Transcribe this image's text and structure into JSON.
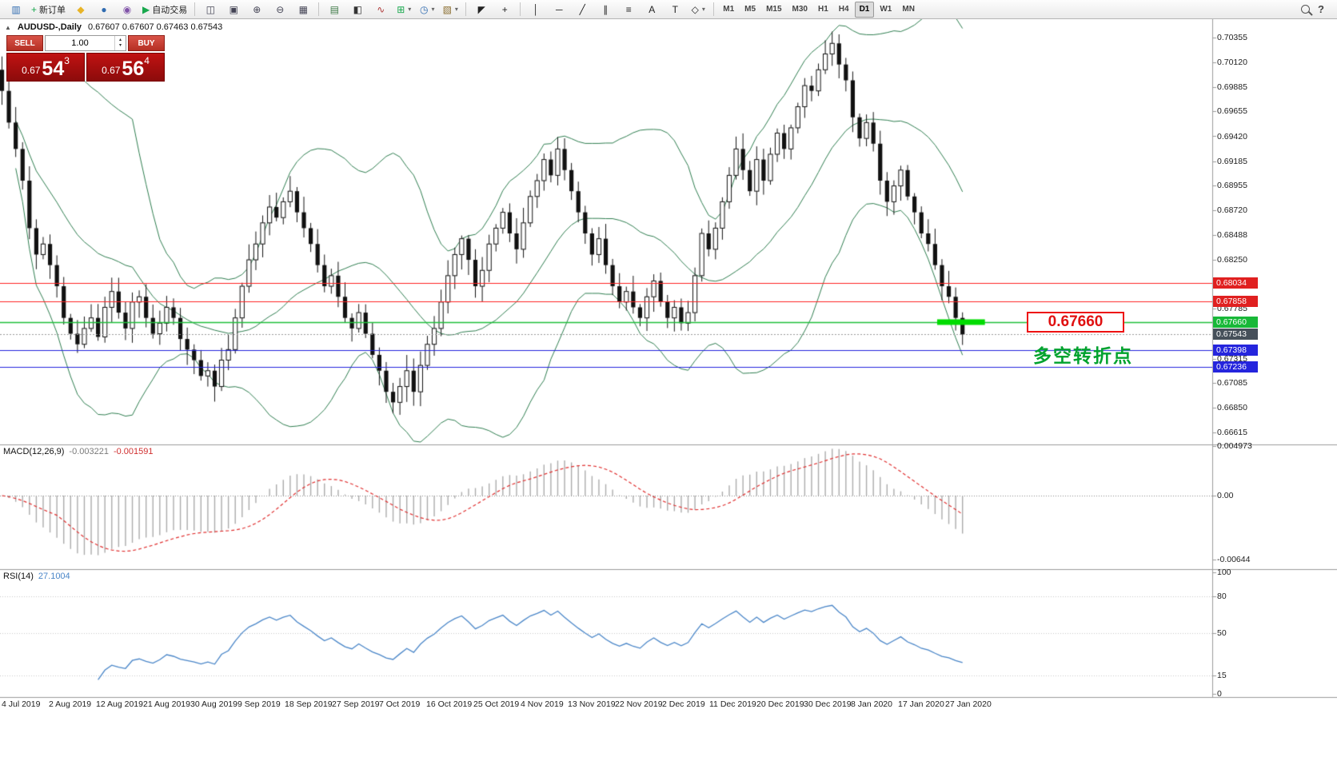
{
  "toolbar": {
    "dropdown_glyph": "▾",
    "help_glyph": "?",
    "groups": [
      [
        {
          "name": "new-chart-button",
          "glyph": "▥",
          "color": "#2f6bb0"
        },
        {
          "name": "new-order-button",
          "glyph": "+",
          "color": "#18a84d",
          "label": "新订单"
        },
        {
          "name": "favorites-button",
          "glyph": "◆",
          "color": "#e8b427"
        },
        {
          "name": "history-center-button",
          "glyph": "●",
          "color": "#2f6bb0"
        },
        {
          "name": "navigator-button",
          "glyph": "◉",
          "color": "#8053a8"
        },
        {
          "name": "autotrading-button",
          "glyph": "▶",
          "color": "#18a84d",
          "label": "自动交易"
        }
      ],
      [
        {
          "name": "tile-windows-button",
          "glyph": "◫",
          "color": "#444455"
        },
        {
          "name": "cascade-windows-button",
          "glyph": "▣",
          "color": "#444455"
        },
        {
          "name": "zoom-in-button",
          "glyph": "⊕",
          "color": "#444455"
        },
        {
          "name": "zoom-out-button",
          "glyph": "⊖",
          "color": "#444455"
        },
        {
          "name": "grid-button",
          "glyph": "▦",
          "color": "#444455"
        }
      ],
      [
        {
          "name": "bars-chart-button",
          "glyph": "▤",
          "color": "#3d7a46"
        },
        {
          "name": "candlestick-chart-button",
          "glyph": "◧",
          "color": "#333333"
        },
        {
          "name": "line-chart-button",
          "glyph": "∿",
          "color": "#b03a3a"
        },
        {
          "name": "indicators-button",
          "glyph": "⊞",
          "color": "#18a84d",
          "dropdown": true
        },
        {
          "name": "periods-button",
          "glyph": "◷",
          "color": "#2f6bb0",
          "dropdown": true
        },
        {
          "name": "templates-button",
          "glyph": "▧",
          "color": "#8a6d2f",
          "dropdown": true
        }
      ],
      [
        {
          "name": "cursor-button",
          "glyph": "◤",
          "color": "#222222"
        },
        {
          "name": "crosshair-button",
          "glyph": "+",
          "color": "#222222"
        }
      ],
      [
        {
          "name": "vertical-line-button",
          "glyph": "│",
          "color": "#222222"
        },
        {
          "name": "horizontal-line-button",
          "glyph": "─",
          "color": "#222222"
        },
        {
          "name": "trendline-button",
          "glyph": "╱",
          "color": "#222222"
        },
        {
          "name": "channel-button",
          "glyph": "∥",
          "color": "#222222"
        },
        {
          "name": "fibonacci-button",
          "glyph": "≡",
          "color": "#222222"
        },
        {
          "name": "text-button",
          "glyph": "A",
          "color": "#222222"
        },
        {
          "name": "label-button",
          "glyph": "T",
          "color": "#222222"
        },
        {
          "name": "shapes-button",
          "glyph": "◇",
          "color": "#222222",
          "dropdown": true
        }
      ]
    ],
    "timeframes": [
      {
        "label": "M1"
      },
      {
        "label": "M5"
      },
      {
        "label": "M15"
      },
      {
        "label": "M30"
      },
      {
        "label": "H1"
      },
      {
        "label": "H4"
      },
      {
        "label": "D1",
        "active": true
      },
      {
        "label": "W1"
      },
      {
        "label": "MN"
      }
    ]
  },
  "chart": {
    "collapse_glyph": "▲",
    "symbol_period": "AUDUSD-,Daily",
    "ohlc": "0.67607 0.67607 0.67463 0.67543"
  },
  "one_click": {
    "sell_label": "SELL",
    "buy_label": "BUY",
    "volume": "1.00",
    "spin_up": "▴",
    "spin_down": "▾",
    "bid_int": "0.67",
    "bid_big": "54",
    "bid_sup": "3",
    "ask_int": "0.67",
    "ask_big": "56",
    "ask_sup": "4"
  },
  "annotations": {
    "price_label": "0.67660",
    "turning_point": "多空转折点"
  },
  "price_axis": {
    "ticks": [
      {
        "label": "0.70355",
        "price": 0.70355
      },
      {
        "label": "0.70120",
        "price": 0.7012
      },
      {
        "label": "0.69885",
        "price": 0.69885
      },
      {
        "label": "0.69655",
        "price": 0.69655
      },
      {
        "label": "0.69420",
        "price": 0.6942
      },
      {
        "label": "0.69185",
        "price": 0.69185
      },
      {
        "label": "0.68955",
        "price": 0.68955
      },
      {
        "label": "0.68720",
        "price": 0.6872
      },
      {
        "label": "0.68488",
        "price": 0.68488
      },
      {
        "label": "0.68250",
        "price": 0.6825
      },
      {
        "label": "0.67785",
        "price": 0.67785
      },
      {
        "label": "0.67315",
        "price": 0.67315
      },
      {
        "label": "0.67085",
        "price": 0.67085
      },
      {
        "label": "0.66850",
        "price": 0.6685
      },
      {
        "label": "0.66615",
        "price": 0.66615
      }
    ],
    "badges": [
      {
        "label": "0.68034",
        "price": 0.68034,
        "bg": "#e02020"
      },
      {
        "label": "0.67858",
        "price": 0.67858,
        "bg": "#e02020"
      },
      {
        "label": "0.67660",
        "price": 0.6766,
        "bg": "#18b838"
      },
      {
        "label": "0.67543",
        "price": 0.67543,
        "bg": "#46505a"
      },
      {
        "label": "0.67398",
        "price": 0.67398,
        "bg": "#2525dd"
      },
      {
        "label": "0.67236",
        "price": 0.67236,
        "bg": "#2525dd"
      }
    ]
  },
  "macd": {
    "name": "MACD(12,26,9)",
    "value_main": "-0.003221",
    "value_signal": "-0.001591",
    "scale": [
      {
        "label": "0.004973",
        "value": 0.004973
      },
      {
        "label": "0.00",
        "value": 0
      },
      {
        "label": "-0.00644",
        "value": -0.00644
      }
    ]
  },
  "rsi": {
    "name": "RSI(14)",
    "value": "27.1004",
    "scale": [
      {
        "label": "100",
        "value": 100
      },
      {
        "label": "80",
        "value": 80
      },
      {
        "label": "50",
        "value": 50
      },
      {
        "label": "15",
        "value": 15
      },
      {
        "label": "0",
        "value": 0
      }
    ],
    "levels": [
      80,
      50,
      15
    ]
  },
  "chart_data": {
    "type": "candlestick",
    "symbol": "AUDUSD",
    "timeframe": "Daily",
    "first_open": 0.7005,
    "close": [
      0.6985,
      0.6955,
      0.693,
      0.69,
      0.6855,
      0.683,
      0.684,
      0.682,
      0.68,
      0.677,
      0.6755,
      0.6745,
      0.676,
      0.677,
      0.6752,
      0.678,
      0.6795,
      0.6775,
      0.676,
      0.6785,
      0.679,
      0.677,
      0.6755,
      0.6765,
      0.678,
      0.677,
      0.675,
      0.674,
      0.673,
      0.6715,
      0.672,
      0.6705,
      0.673,
      0.674,
      0.677,
      0.68,
      0.6825,
      0.684,
      0.686,
      0.6875,
      0.6865,
      0.688,
      0.689,
      0.687,
      0.6855,
      0.684,
      0.682,
      0.68,
      0.681,
      0.679,
      0.677,
      0.676,
      0.6775,
      0.6755,
      0.6735,
      0.672,
      0.67,
      0.669,
      0.6705,
      0.672,
      0.67,
      0.6725,
      0.6745,
      0.676,
      0.6785,
      0.681,
      0.683,
      0.6845,
      0.6825,
      0.68,
      0.6815,
      0.684,
      0.6855,
      0.687,
      0.685,
      0.6835,
      0.686,
      0.6885,
      0.69,
      0.692,
      0.6905,
      0.693,
      0.691,
      0.689,
      0.687,
      0.685,
      0.683,
      0.6845,
      0.682,
      0.68,
      0.6785,
      0.6795,
      0.678,
      0.677,
      0.679,
      0.6805,
      0.6785,
      0.677,
      0.678,
      0.6765,
      0.6775,
      0.681,
      0.685,
      0.6835,
      0.6855,
      0.688,
      0.6905,
      0.693,
      0.691,
      0.689,
      0.692,
      0.69,
      0.6925,
      0.6945,
      0.693,
      0.695,
      0.697,
      0.699,
      0.6985,
      0.7005,
      0.702,
      0.703,
      0.701,
      0.6995,
      0.696,
      0.694,
      0.6955,
      0.6935,
      0.69,
      0.688,
      0.6895,
      0.691,
      0.6885,
      0.687,
      0.685,
      0.684,
      0.682,
      0.68,
      0.679,
      0.677,
      0.67543
    ],
    "x_labels": [
      "4 Jul 2019",
      "2 Aug 2019",
      "12 Aug 2019",
      "21 Aug 2019",
      "30 Aug 2019",
      "9 Sep 2019",
      "18 Sep 2019",
      "27 Sep 2019",
      "7 Oct 2019",
      "16 Oct 2019",
      "25 Oct 2019",
      "4 Nov 2019",
      "13 Nov 2019",
      "22 Nov 2019",
      "2 Dec 2019",
      "11 Dec 2019",
      "20 Dec 2019",
      "30 Dec 2019",
      "8 Jan 2020",
      "17 Jan 2020",
      "27 Jan 2020"
    ],
    "y_range": {
      "min": 0.66615,
      "max": 0.70355
    },
    "levels": [
      {
        "price": 0.68034,
        "color": "#ff2222",
        "style": "solid",
        "width": 1
      },
      {
        "price": 0.67858,
        "color": "#ff2222",
        "style": "solid",
        "width": 1
      },
      {
        "price": 0.6766,
        "color": "#1fbf3a",
        "style": "solid",
        "width": 1.4
      },
      {
        "price": 0.67543,
        "color": "#9a9a9a",
        "style": "dot",
        "width": 1
      },
      {
        "price": 0.67398,
        "color": "#2222dd",
        "style": "solid",
        "width": 1
      },
      {
        "price": 0.67236,
        "color": "#2222dd",
        "style": "solid",
        "width": 1
      }
    ],
    "highlight_marker": {
      "price": 0.6766,
      "color": "#00dc00"
    },
    "indicators": {
      "bollinger": {
        "period": 20,
        "deviation": 2,
        "color": "#2e7d4f"
      },
      "macd": {
        "fast": 12,
        "slow": 26,
        "signal": 9,
        "hist_color": "#ababab",
        "signal_color": "#e03030"
      },
      "rsi": {
        "period": 14,
        "color": "#4a86c8"
      }
    }
  }
}
